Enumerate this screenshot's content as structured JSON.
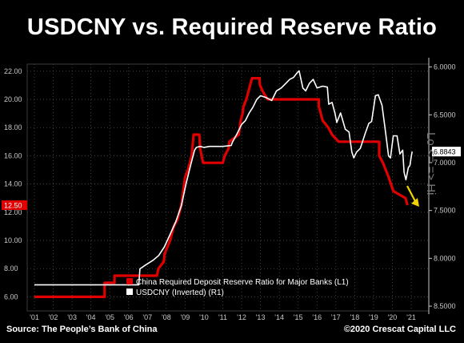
{
  "header": {
    "title": "USDCNY vs. Required Reserve Ratio"
  },
  "footer": {
    "source": "Source: The People’s Bank of China",
    "copyright": "©2020 Crescat Capital LLC"
  },
  "side_label": "Lo <= => Hi",
  "colors": {
    "background": "#000000",
    "rrr_series": "#e00000",
    "usdcny_series": "#ffffff",
    "arrow": "#f2d400",
    "grid": "#5a5a5a",
    "axis_text": "#c8c8c8"
  },
  "chart_data": {
    "type": "line",
    "title": "USDCNY vs. Required Reserve Ratio",
    "x_ticks": [
      "'01",
      "'02",
      "'03",
      "'04",
      "'05",
      "'06",
      "'07",
      "'08",
      "'09",
      "'10",
      "'11",
      "'12",
      "'13",
      "'14",
      "'15",
      "'16",
      "'17",
      "'18",
      "'19",
      "'20",
      "'21"
    ],
    "left_axis": {
      "ticks": [
        "6.00",
        "8.00",
        "10.00",
        "12.00",
        "14.00",
        "16.00",
        "18.00",
        "20.00",
        "22.00"
      ],
      "range": [
        5.0,
        22.5
      ],
      "last_value_badge": "12.50"
    },
    "right_axis": {
      "ticks": [
        "6.0000",
        "6.5000",
        "7.0000",
        "7.5000",
        "8.0000",
        "8.5000"
      ],
      "range": [
        5.97,
        8.55
      ],
      "inverted": true,
      "last_value_badge": "6.8843"
    },
    "grid": true,
    "legend_position": "bottom-center",
    "series": [
      {
        "name": "China Required Deposit Reserve Ratio for Major Banks (L1)",
        "axis": "left",
        "color": "#e00000",
        "points": [
          [
            2000.0,
            6.0
          ],
          [
            2003.73,
            6.0
          ],
          [
            2003.73,
            7.0
          ],
          [
            2004.25,
            7.0
          ],
          [
            2004.25,
            7.5
          ],
          [
            2006.5,
            7.5
          ],
          [
            2006.58,
            8.0
          ],
          [
            2006.87,
            8.5
          ],
          [
            2006.9,
            9.0
          ],
          [
            2007.05,
            9.5
          ],
          [
            2007.2,
            10.0
          ],
          [
            2007.3,
            10.5
          ],
          [
            2007.4,
            11.0
          ],
          [
            2007.6,
            11.5
          ],
          [
            2007.7,
            12.0
          ],
          [
            2007.8,
            12.5
          ],
          [
            2007.9,
            13.5
          ],
          [
            2008.0,
            14.5
          ],
          [
            2008.15,
            15.0
          ],
          [
            2008.25,
            15.5
          ],
          [
            2008.35,
            16.0
          ],
          [
            2008.45,
            17.5
          ],
          [
            2008.75,
            17.5
          ],
          [
            2008.8,
            16.5
          ],
          [
            2008.95,
            15.5
          ],
          [
            2010.0,
            15.5
          ],
          [
            2010.1,
            16.0
          ],
          [
            2010.3,
            16.5
          ],
          [
            2010.35,
            17.0
          ],
          [
            2010.85,
            17.5
          ],
          [
            2010.9,
            18.0
          ],
          [
            2010.95,
            18.5
          ],
          [
            2011.05,
            19.0
          ],
          [
            2011.1,
            19.5
          ],
          [
            2011.25,
            20.0
          ],
          [
            2011.35,
            20.5
          ],
          [
            2011.45,
            21.0
          ],
          [
            2011.55,
            21.5
          ],
          [
            2011.95,
            21.5
          ],
          [
            2011.97,
            21.0
          ],
          [
            2012.15,
            20.5
          ],
          [
            2012.38,
            20.0
          ],
          [
            2015.1,
            20.0
          ],
          [
            2015.1,
            19.5
          ],
          [
            2015.3,
            18.5
          ],
          [
            2015.6,
            18.0
          ],
          [
            2015.8,
            17.5
          ],
          [
            2016.15,
            17.0
          ],
          [
            2018.3,
            17.0
          ],
          [
            2018.3,
            16.0
          ],
          [
            2018.5,
            15.5
          ],
          [
            2018.8,
            14.5
          ],
          [
            2019.05,
            13.5
          ],
          [
            2019.7,
            13.0
          ],
          [
            2019.8,
            12.5
          ]
        ]
      },
      {
        "name": "USDCNY (Inverted) (R1)",
        "axis": "right",
        "color": "#ffffff",
        "points": [
          [
            2000.0,
            8.277
          ],
          [
            2005.54,
            8.277
          ],
          [
            2005.6,
            8.11
          ],
          [
            2005.9,
            8.07
          ],
          [
            2006.3,
            8.02
          ],
          [
            2006.6,
            7.97
          ],
          [
            2006.9,
            7.88
          ],
          [
            2007.2,
            7.75
          ],
          [
            2007.5,
            7.62
          ],
          [
            2007.8,
            7.45
          ],
          [
            2008.05,
            7.22
          ],
          [
            2008.3,
            7.02
          ],
          [
            2008.5,
            6.87
          ],
          [
            2008.6,
            6.84
          ],
          [
            2008.8,
            6.83
          ],
          [
            2009.0,
            6.84
          ],
          [
            2009.3,
            6.83
          ],
          [
            2009.6,
            6.83
          ],
          [
            2010.0,
            6.83
          ],
          [
            2010.45,
            6.82
          ],
          [
            2010.5,
            6.79
          ],
          [
            2010.75,
            6.7
          ],
          [
            2011.0,
            6.6
          ],
          [
            2011.2,
            6.56
          ],
          [
            2011.4,
            6.48
          ],
          [
            2011.6,
            6.42
          ],
          [
            2011.8,
            6.34
          ],
          [
            2012.0,
            6.3
          ],
          [
            2012.3,
            6.32
          ],
          [
            2012.6,
            6.35
          ],
          [
            2012.85,
            6.25
          ],
          [
            2013.1,
            6.22
          ],
          [
            2013.35,
            6.17
          ],
          [
            2013.55,
            6.13
          ],
          [
            2013.75,
            6.11
          ],
          [
            2013.95,
            6.06
          ],
          [
            2014.05,
            6.04
          ],
          [
            2014.25,
            6.22
          ],
          [
            2014.4,
            6.25
          ],
          [
            2014.6,
            6.17
          ],
          [
            2014.8,
            6.13
          ],
          [
            2015.0,
            6.22
          ],
          [
            2015.3,
            6.2
          ],
          [
            2015.55,
            6.21
          ],
          [
            2015.62,
            6.39
          ],
          [
            2015.8,
            6.37
          ],
          [
            2015.95,
            6.48
          ],
          [
            2016.05,
            6.58
          ],
          [
            2016.25,
            6.48
          ],
          [
            2016.5,
            6.65
          ],
          [
            2016.7,
            6.68
          ],
          [
            2016.85,
            6.89
          ],
          [
            2016.95,
            6.95
          ],
          [
            2017.1,
            6.89
          ],
          [
            2017.3,
            6.85
          ],
          [
            2017.55,
            6.7
          ],
          [
            2017.75,
            6.59
          ],
          [
            2017.9,
            6.57
          ],
          [
            2018.1,
            6.3
          ],
          [
            2018.25,
            6.29
          ],
          [
            2018.45,
            6.4
          ],
          [
            2018.6,
            6.62
          ],
          [
            2018.8,
            6.93
          ],
          [
            2018.9,
            6.95
          ],
          [
            2019.05,
            6.72
          ],
          [
            2019.25,
            6.72
          ],
          [
            2019.4,
            6.91
          ],
          [
            2019.55,
            6.87
          ],
          [
            2019.62,
            7.1
          ],
          [
            2019.72,
            7.18
          ],
          [
            2019.85,
            7.05
          ],
          [
            2019.93,
            7.03
          ],
          [
            2020.0,
            6.94
          ],
          [
            2020.05,
            6.8843
          ]
        ]
      }
    ]
  }
}
